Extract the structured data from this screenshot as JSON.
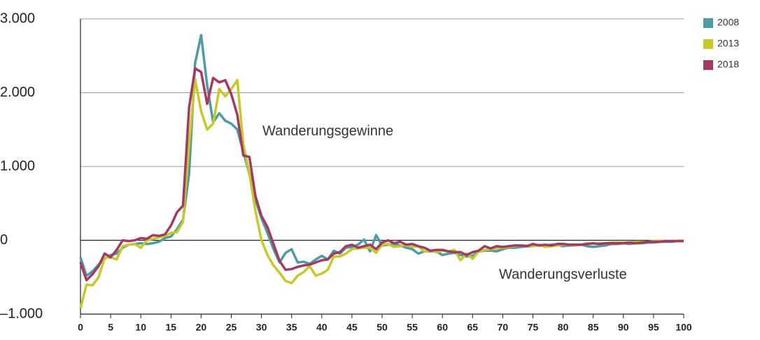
{
  "chart_data": {
    "type": "line",
    "x": [
      0,
      1,
      2,
      3,
      4,
      5,
      6,
      7,
      8,
      9,
      10,
      11,
      12,
      13,
      14,
      15,
      16,
      17,
      18,
      19,
      20,
      21,
      22,
      23,
      24,
      25,
      26,
      27,
      28,
      29,
      30,
      31,
      32,
      33,
      34,
      35,
      36,
      37,
      38,
      39,
      40,
      41,
      42,
      43,
      44,
      45,
      46,
      47,
      48,
      49,
      50,
      51,
      52,
      53,
      54,
      55,
      56,
      57,
      58,
      59,
      60,
      61,
      62,
      63,
      64,
      65,
      66,
      67,
      68,
      69,
      70,
      71,
      72,
      73,
      74,
      75,
      76,
      77,
      78,
      79,
      80,
      81,
      82,
      83,
      84,
      85,
      86,
      87,
      88,
      89,
      90,
      91,
      92,
      93,
      94,
      95,
      96,
      97,
      98,
      99,
      100
    ],
    "series": [
      {
        "name": "2008",
        "color": "#4f9ba3",
        "values": [
          -230,
          -480,
          -420,
          -330,
          -250,
          -200,
          -180,
          -100,
          -60,
          -50,
          -40,
          -50,
          -40,
          -20,
          30,
          50,
          150,
          280,
          900,
          2400,
          2780,
          2100,
          1600,
          1720,
          1620,
          1580,
          1500,
          1200,
          900,
          550,
          300,
          100,
          -120,
          -300,
          -170,
          -120,
          -300,
          -290,
          -320,
          -260,
          -210,
          -260,
          -140,
          -180,
          -100,
          -90,
          -60,
          10,
          -150,
          70,
          -70,
          -60,
          -50,
          -70,
          -100,
          -120,
          -180,
          -150,
          -150,
          -150,
          -200,
          -180,
          -170,
          -200,
          -220,
          -210,
          -150,
          -140,
          -140,
          -150,
          -120,
          -100,
          -100,
          -90,
          -80,
          -80,
          -60,
          -70,
          -60,
          -60,
          -80,
          -70,
          -70,
          -60,
          -80,
          -90,
          -80,
          -70,
          -50,
          -50,
          -40,
          -50,
          -40,
          -40,
          -30,
          -30,
          -20,
          -20,
          -20,
          -10,
          -10
        ]
      },
      {
        "name": "2013",
        "color": "#c5c92a",
        "values": [
          -920,
          -600,
          -610,
          -500,
          -240,
          -230,
          -260,
          -80,
          -60,
          -50,
          -100,
          0,
          20,
          40,
          60,
          100,
          110,
          250,
          1300,
          2180,
          1750,
          1500,
          1580,
          2050,
          1950,
          2050,
          2170,
          1300,
          900,
          400,
          0,
          -200,
          -340,
          -440,
          -550,
          -580,
          -480,
          -430,
          -350,
          -480,
          -450,
          -400,
          -220,
          -220,
          -180,
          -120,
          -110,
          -100,
          -100,
          -170,
          -60,
          -50,
          -90,
          -80,
          -60,
          -90,
          -80,
          -150,
          -140,
          -160,
          -140,
          -150,
          -130,
          -270,
          -180,
          -250,
          -150,
          -130,
          -120,
          -110,
          -100,
          -90,
          -80,
          -70,
          -70,
          -80,
          -60,
          -90,
          -80,
          -70,
          -60,
          -60,
          -70,
          -60,
          -40,
          -50,
          -40,
          -40,
          -30,
          -30,
          -30,
          -30,
          -20,
          -20,
          -20,
          -10,
          -10,
          -10,
          -10,
          -5,
          -5
        ]
      },
      {
        "name": "2018",
        "color": "#a33a62",
        "values": [
          -300,
          -540,
          -460,
          -350,
          -180,
          -230,
          -130,
          0,
          -10,
          0,
          30,
          20,
          70,
          60,
          80,
          200,
          380,
          470,
          1800,
          2330,
          2280,
          1850,
          2200,
          2140,
          2170,
          1980,
          1700,
          1150,
          1130,
          600,
          330,
          180,
          -50,
          -280,
          -400,
          -390,
          -360,
          -340,
          -330,
          -300,
          -270,
          -260,
          -180,
          -160,
          -80,
          -60,
          -100,
          -80,
          -60,
          -120,
          -30,
          0,
          -40,
          -20,
          -60,
          -50,
          -80,
          -100,
          -140,
          -130,
          -130,
          -150,
          -160,
          -160,
          -200,
          -160,
          -140,
          -80,
          -110,
          -80,
          -90,
          -80,
          -70,
          -70,
          -80,
          -50,
          -70,
          -60,
          -70,
          -50,
          -50,
          -60,
          -60,
          -60,
          -50,
          -40,
          -50,
          -40,
          -40,
          -40,
          -40,
          -30,
          -40,
          -30,
          -20,
          -20,
          -20,
          -10,
          -10,
          -10,
          -10
        ]
      }
    ],
    "xlim": [
      0,
      100
    ],
    "xticks": [
      0,
      5,
      10,
      15,
      20,
      25,
      30,
      35,
      40,
      45,
      50,
      55,
      60,
      65,
      70,
      75,
      80,
      85,
      90,
      95,
      100
    ],
    "ylim": [
      -1000,
      3000
    ],
    "yticks": [
      {
        "value": -1000,
        "label": "–1.000"
      },
      0,
      {
        "value": 1000,
        "label": "1.000"
      },
      {
        "value": 2000,
        "label": "2.000"
      },
      {
        "value": 3000,
        "label": "3.000"
      }
    ],
    "grid": true,
    "legend": "top-right",
    "annotations": [
      "Wanderungsgewinne",
      "Wanderungsverluste"
    ]
  }
}
